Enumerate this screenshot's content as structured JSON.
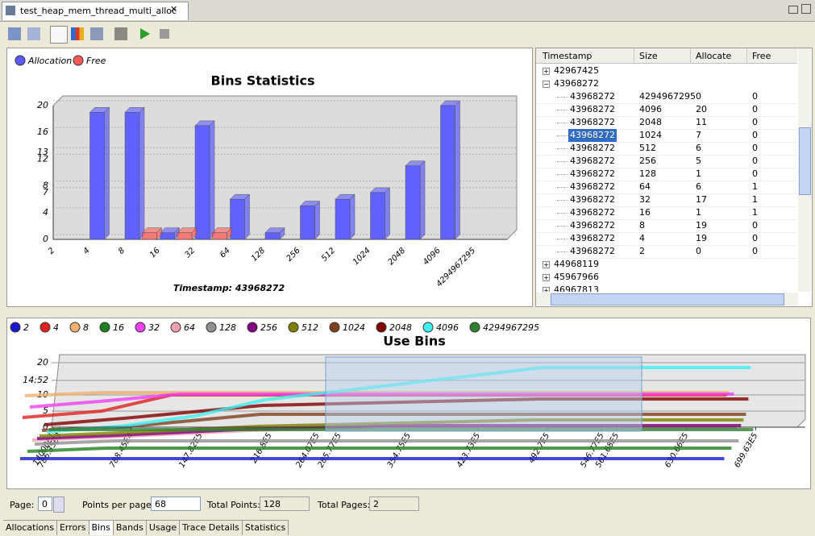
{
  "window": {
    "tab_title": "test_heap_mem_thread_multi_alloc",
    "bottom_tabs": [
      "Allocations",
      "Errors",
      "Bins",
      "Bands",
      "Usage",
      "Trace Details",
      "Statistics"
    ]
  },
  "chart_data": [
    {
      "type": "bar",
      "title": "Bins Statistics",
      "x_label": "Timestamp: 43968272",
      "categories": [
        "2",
        "4",
        "8",
        "16",
        "32",
        "64",
        "128",
        "256",
        "512",
        "1024",
        "2048",
        "4096",
        "4294967295"
      ],
      "series": [
        {
          "name": "Allocation",
          "color": "#5a5aff",
          "values": [
            0,
            19,
            19,
            1,
            17,
            6,
            1,
            5,
            6,
            7,
            11,
            20,
            0
          ]
        },
        {
          "name": "Free",
          "color": "#ff5a5a",
          "values": [
            0,
            0,
            0,
            1,
            1,
            1,
            0,
            0,
            0,
            0,
            0,
            0,
            0
          ]
        }
      ],
      "ylim": [
        0,
        20
      ],
      "yticks": [
        0,
        4,
        7,
        8,
        12,
        13,
        16,
        20
      ]
    },
    {
      "type": "line",
      "title": "Use Bins",
      "x": [
        0,
        7884500,
        14782000,
        21680000,
        35475000,
        49270000,
        63066000,
        69963000
      ],
      "xlim": [
        0,
        74900000
      ],
      "xticks": [
        {
          "value": 140000,
          "label": "14000E1"
        },
        {
          "value": 786350,
          "label": "786.35E3"
        },
        {
          "value": 7884500,
          "label": "788.45E4"
        },
        {
          "value": 14782000,
          "label": "147.82E5"
        },
        {
          "value": 21680000,
          "label": "216.8E5"
        },
        {
          "value": 26407000,
          "label": "264.07E5"
        },
        {
          "value": 28577000,
          "label": "285.77E5"
        },
        {
          "value": 35475000,
          "label": "354.75E5"
        },
        {
          "value": 42373000,
          "label": "423.73E5"
        },
        {
          "value": 49270000,
          "label": "492.7E5"
        },
        {
          "value": 54677000,
          "label": "546.77E5"
        },
        {
          "value": 56168000,
          "label": "561.68E5"
        },
        {
          "value": 63066000,
          "label": "630.66E5"
        },
        {
          "value": 69963000,
          "label": "699.63E5"
        }
      ],
      "ylim": [
        0,
        20
      ],
      "yticks": [
        0,
        5,
        10,
        {
          "value": 14.52,
          "label": "14:52"
        },
        20
      ],
      "series": [
        {
          "name": "2",
          "color": "#1a1acc",
          "values": [
            0,
            0,
            0,
            0,
            0,
            0,
            0,
            0
          ]
        },
        {
          "name": "4",
          "color": "#e02020",
          "values": [
            12,
            14,
            19,
            19,
            19,
            19,
            19,
            19
          ]
        },
        {
          "name": "8",
          "color": "#f0b070",
          "values": [
            18,
            19,
            19,
            19,
            19,
            19,
            19,
            19
          ]
        },
        {
          "name": "16",
          "color": "#208020",
          "values": [
            0,
            1,
            1,
            1,
            1,
            1,
            1,
            1
          ]
        },
        {
          "name": "32",
          "color": "#f040f0",
          "values": [
            13,
            15,
            17,
            17,
            17,
            17,
            17,
            17
          ]
        },
        {
          "name": "64",
          "color": "#f0a0b0",
          "values": [
            2,
            3,
            4,
            5,
            6,
            6,
            6,
            6
          ]
        },
        {
          "name": "128",
          "color": "#909090",
          "values": [
            0,
            1,
            1,
            1,
            1,
            1,
            1,
            1
          ]
        },
        {
          "name": "256",
          "color": "#800080",
          "values": [
            1,
            2,
            3,
            4,
            5,
            5,
            5,
            5
          ]
        },
        {
          "name": "512",
          "color": "#808000",
          "values": [
            1,
            2,
            3,
            4,
            5,
            6,
            6,
            6
          ]
        },
        {
          "name": "1024",
          "color": "#804020",
          "values": [
            2,
            3,
            5,
            7,
            7,
            7,
            7,
            7
          ]
        },
        {
          "name": "2048",
          "color": "#800000",
          "values": [
            3,
            5,
            7,
            9,
            10,
            11,
            11,
            11
          ]
        },
        {
          "name": "4096",
          "color": "#40f0f0",
          "values": [
            0,
            2,
            5,
            10,
            15,
            20,
            20,
            20
          ]
        },
        {
          "name": "4294967295",
          "color": "#308030",
          "values": [
            0,
            0,
            0,
            0,
            0,
            0,
            0,
            0
          ]
        }
      ]
    }
  ],
  "table": {
    "columns": [
      "Timestamp",
      "Size",
      "Allocate",
      "Free"
    ],
    "groups": [
      {
        "timestamp": "42967425"
      },
      {
        "timestamp": "43968272",
        "rows": [
          [
            "43968272",
            "4294967295",
            "0",
            "0"
          ],
          [
            "43968272",
            "4096",
            "20",
            "0"
          ],
          [
            "43968272",
            "2048",
            "11",
            "0"
          ],
          [
            "43968272",
            "1024",
            "7",
            "0"
          ],
          [
            "43968272",
            "512",
            "6",
            "0"
          ],
          [
            "43968272",
            "256",
            "5",
            "0"
          ],
          [
            "43968272",
            "128",
            "1",
            "0"
          ],
          [
            "43968272",
            "64",
            "6",
            "1"
          ],
          [
            "43968272",
            "32",
            "17",
            "1"
          ],
          [
            "43968272",
            "16",
            "1",
            "1"
          ],
          [
            "43968272",
            "8",
            "19",
            "0"
          ],
          [
            "43968272",
            "4",
            "19",
            "0"
          ],
          [
            "43968272",
            "2",
            "0",
            "0"
          ]
        ]
      },
      {
        "timestamp": "44968119"
      },
      {
        "timestamp": "45967966"
      },
      {
        "timestamp": "46967813"
      }
    ]
  },
  "pager": {
    "page_label": "Page:",
    "page": "0",
    "points_per_page_label": "Points per page:",
    "points_per_page": "68",
    "total_points_label": "Total Points:",
    "total_points": "128",
    "total_pages_label": "Total Pages:",
    "total_pages": "2"
  }
}
